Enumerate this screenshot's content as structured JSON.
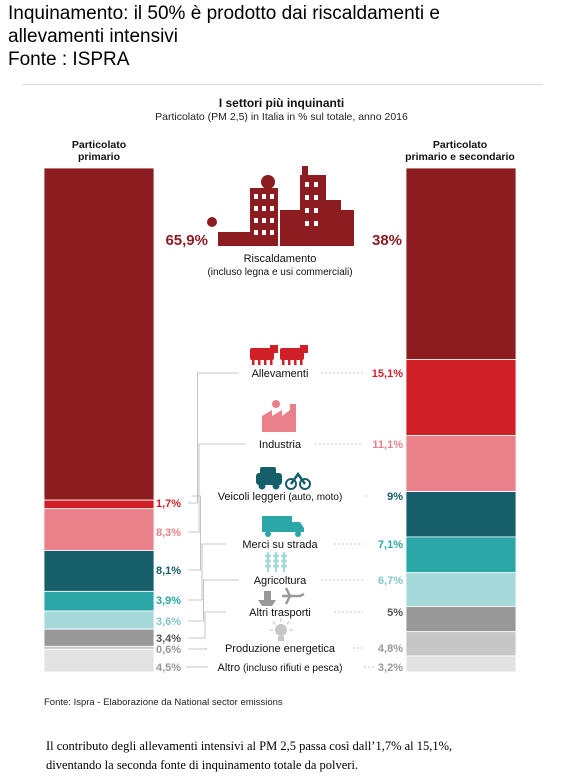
{
  "header": {
    "line1": "Inquinamento: il 50% è prodotto dai riscaldamenti e",
    "line2": "allevamenti intensivi",
    "line3": "Fonte : ISPRA"
  },
  "chart_data": {
    "type": "bar",
    "title": "I settori più inquinanti",
    "subtitle": "Particolato (PM 2,5) in Italia in % sul totale, anno 2016",
    "series": [
      {
        "name": "Particolato primario",
        "values": [
          65.9,
          1.7,
          8.3,
          8.1,
          3.9,
          3.6,
          3.4,
          0.6,
          4.5
        ]
      },
      {
        "name": "Particolato primario e secondario",
        "values": [
          38,
          15.1,
          11.1,
          9,
          7.1,
          6.7,
          5,
          4.8,
          3.2
        ]
      }
    ],
    "categories": [
      {
        "label": "Riscaldamento",
        "sublabel": "(incluso legna e usi commerciali)",
        "color": "#8c1c20",
        "left_label": "65,9%",
        "right_label": "38%",
        "left_text_color": "#8c1c20",
        "right_text_color": "#8c1c20",
        "icon": "factory-icon"
      },
      {
        "label": "Allevamenti",
        "sublabel": "",
        "color": "#d11f27",
        "left_label": "1,7%",
        "right_label": "15,1%",
        "left_text_color": "#d11f27",
        "right_text_color": "#d11f27",
        "icon": "cow-icon"
      },
      {
        "label": "Industria",
        "sublabel": "",
        "color": "#ea8089",
        "left_label": "8,3%",
        "right_label": "11,1%",
        "left_text_color": "#ea8089",
        "right_text_color": "#ea8089",
        "icon": "industry-icon"
      },
      {
        "label": "Veicoli leggeri",
        "sublabel": "(auto, moto)",
        "color": "#155e6a",
        "left_label": "8,1%",
        "right_label": "9%",
        "left_text_color": "#155e6a",
        "right_text_color": "#155e6a",
        "icon": "car-moto-icon"
      },
      {
        "label": "Merci su strada",
        "sublabel": "",
        "color": "#2aa7a6",
        "left_label": "3,9%",
        "right_label": "7,1%",
        "left_text_color": "#2aa7a6",
        "right_text_color": "#2aa7a6",
        "icon": "truck-icon"
      },
      {
        "label": "Agricoltura",
        "sublabel": "",
        "color": "#a6dada",
        "left_label": "3,6%",
        "right_label": "6,7%",
        "left_text_color": "#86c6c6",
        "right_text_color": "#86c6c6",
        "icon": "wheat-icon"
      },
      {
        "label": "Altri trasporti",
        "sublabel": "",
        "color": "#999999",
        "left_label": "3,4%",
        "right_label": "5%",
        "left_text_color": "#555555",
        "right_text_color": "#555555",
        "icon": "ship-plane-icon"
      },
      {
        "label": "Produzione energetica",
        "sublabel": "",
        "color": "#c6c6c6",
        "left_label": "0,6%",
        "right_label": "4,8%",
        "left_text_color": "#999999",
        "right_text_color": "#999999",
        "icon": "bulb-icon"
      },
      {
        "label": "Altro",
        "sublabel": "(incluso rifiuti e pesca)",
        "color": "#e3e3e3",
        "left_label": "4,5%",
        "right_label": "3,2%",
        "left_text_color": "#999999",
        "right_text_color": "#999999",
        "icon": ""
      }
    ],
    "left_column_title": [
      "Particolato",
      "primario"
    ],
    "right_column_title": [
      "Particolato",
      "primario e secondario"
    ],
    "ylim": [
      0,
      100
    ]
  },
  "source": "Fonte: Ispra - Elaborazione da National sector emissions",
  "caption": {
    "line1": "Il contributo degli allevamenti intensivi al PM 2,5 passa così dall’1,7% al 15,1%,",
    "line2": "diventando la seconda fonte di inquinamento totale da polveri."
  }
}
